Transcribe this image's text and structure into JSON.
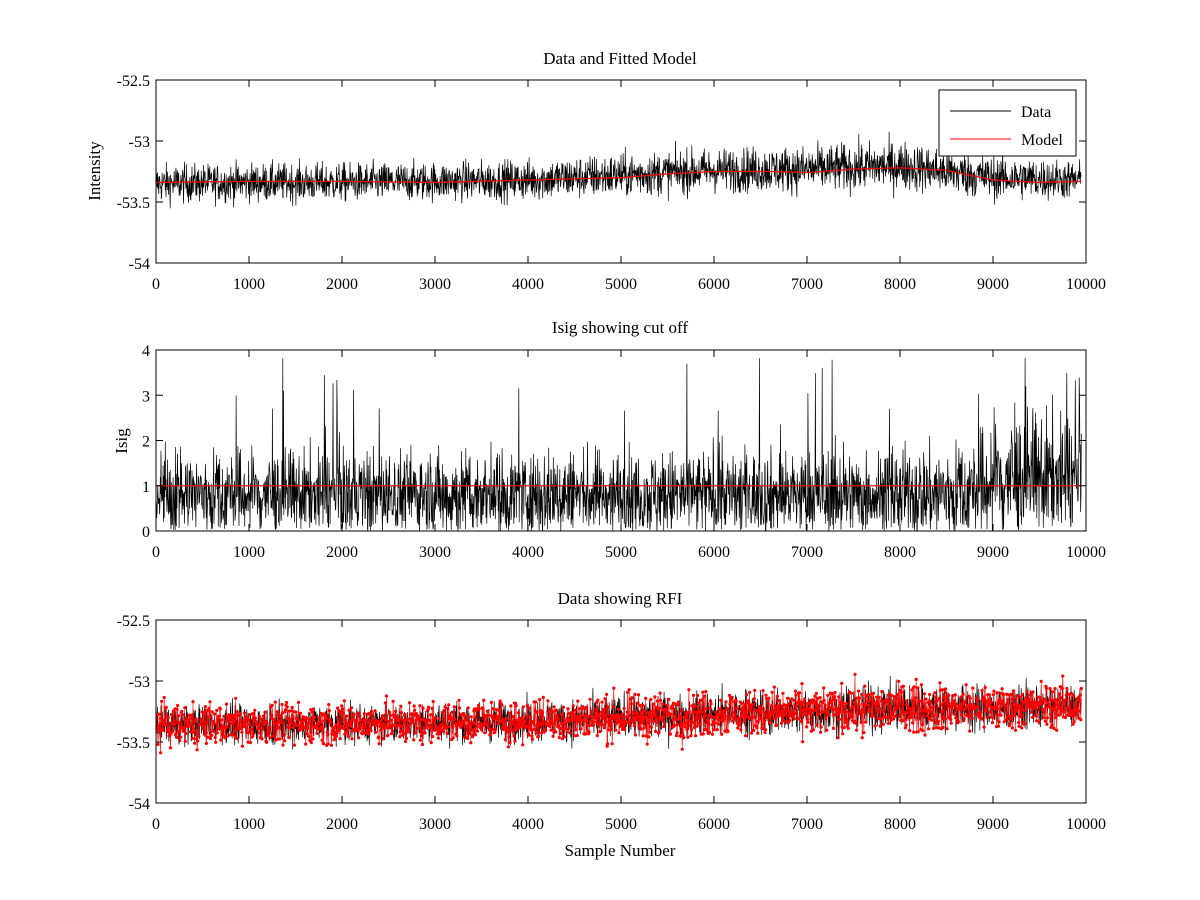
{
  "chart_data": [
    {
      "type": "line",
      "title": "Data and Fitted Model",
      "xlabel": "",
      "ylabel": "Intensity",
      "xlim": [
        0,
        10000
      ],
      "ylim": [
        -54,
        -52.5
      ],
      "xticks": [
        0,
        1000,
        2000,
        3000,
        4000,
        5000,
        6000,
        7000,
        8000,
        9000,
        10000
      ],
      "xtick_labels": [
        "0",
        "1000",
        "2000",
        "3000",
        "4000",
        "5000",
        "6000",
        "7000",
        "8000",
        "9000",
        "10000"
      ],
      "yticks": [
        -54,
        -53.5,
        -53,
        -52.5
      ],
      "ytick_labels": [
        "-54",
        "-53.5",
        "-53",
        "-52.5"
      ],
      "grid": false,
      "legend": "top-right",
      "series": [
        {
          "name": "Data",
          "color": "#000000",
          "style": "noisy-line",
          "x": [
            0,
            1000,
            2000,
            3000,
            4000,
            5000,
            6000,
            7000,
            8000,
            9000,
            9950
          ],
          "y_mean": [
            -53.35,
            -53.34,
            -53.34,
            -53.33,
            -53.32,
            -53.28,
            -53.24,
            -53.23,
            -53.2,
            -53.3,
            -53.32
          ],
          "y_spread": [
            0.14,
            0.14,
            0.14,
            0.14,
            0.15,
            0.16,
            0.16,
            0.17,
            0.18,
            0.16,
            0.14
          ]
        },
        {
          "name": "Model",
          "color": "#ff0000",
          "style": "line",
          "x": [
            0,
            1000,
            2000,
            3000,
            4000,
            5000,
            5500,
            6000,
            6400,
            6600,
            7000,
            7500,
            8000,
            8500,
            9000,
            9500,
            9950
          ],
          "y": [
            -53.34,
            -53.33,
            -53.33,
            -53.34,
            -53.32,
            -53.3,
            -53.27,
            -53.25,
            -53.25,
            -53.25,
            -53.26,
            -53.23,
            -53.22,
            -53.24,
            -53.32,
            -53.34,
            -53.33
          ]
        }
      ]
    },
    {
      "type": "line",
      "title": "Isig showing cut off",
      "xlabel": "",
      "ylabel": "Isig",
      "xlim": [
        0,
        10000
      ],
      "ylim": [
        0,
        4
      ],
      "xticks": [
        0,
        1000,
        2000,
        3000,
        4000,
        5000,
        6000,
        7000,
        8000,
        9000,
        10000
      ],
      "xtick_labels": [
        "0",
        "1000",
        "2000",
        "3000",
        "4000",
        "5000",
        "6000",
        "7000",
        "8000",
        "9000",
        "10000"
      ],
      "yticks": [
        0,
        1,
        2,
        3,
        4
      ],
      "ytick_labels": [
        "0",
        "1",
        "2",
        "3",
        "4"
      ],
      "grid": false,
      "series": [
        {
          "color": "#000000",
          "style": "noisy-line",
          "x": [
            0,
            1000,
            2000,
            3000,
            4000,
            5000,
            6000,
            7000,
            8000,
            8800,
            9000,
            9500,
            9950
          ],
          "y_mean": [
            0.8,
            0.8,
            0.8,
            0.8,
            0.8,
            0.8,
            0.8,
            0.8,
            0.8,
            0.85,
            1.1,
            1.2,
            1.1
          ],
          "y_spread": [
            0.6,
            0.6,
            0.6,
            0.6,
            0.6,
            0.6,
            0.6,
            0.6,
            0.6,
            0.7,
            0.9,
            0.9,
            0.8
          ],
          "y_peak": 3.9
        },
        {
          "color": "#ff0000",
          "style": "line",
          "x": [
            0,
            9950
          ],
          "y": [
            1,
            1
          ]
        }
      ]
    },
    {
      "type": "line",
      "title": "Data showing RFI",
      "xlabel": "Sample Number",
      "ylabel": "",
      "xlim": [
        0,
        10000
      ],
      "ylim": [
        -54,
        -52.5
      ],
      "xticks": [
        0,
        1000,
        2000,
        3000,
        4000,
        5000,
        6000,
        7000,
        8000,
        9000,
        10000
      ],
      "xtick_labels": [
        "0",
        "1000",
        "2000",
        "3000",
        "4000",
        "5000",
        "6000",
        "7000",
        "8000",
        "9000",
        "10000"
      ],
      "yticks": [
        -54,
        -53.5,
        -53,
        -52.5
      ],
      "ytick_labels": [
        "-54",
        "-53.5",
        "-53",
        "-52.5"
      ],
      "grid": false,
      "series": [
        {
          "color": "#000000",
          "style": "noisy-line",
          "x": [
            0,
            1000,
            2000,
            3000,
            4000,
            5000,
            6000,
            7000,
            8000,
            9000,
            9950
          ],
          "y_mean": [
            -53.36,
            -53.35,
            -53.35,
            -53.34,
            -53.33,
            -53.3,
            -53.27,
            -53.25,
            -53.22,
            -53.22,
            -53.2
          ],
          "y_spread": [
            0.14,
            0.14,
            0.14,
            0.14,
            0.15,
            0.15,
            0.16,
            0.16,
            0.17,
            0.16,
            0.15
          ]
        },
        {
          "color": "#ff0000",
          "style": "markers",
          "marker": "dot",
          "x": [
            0,
            1000,
            2000,
            3000,
            4000,
            5000,
            6000,
            7000,
            8000,
            9000,
            9950
          ],
          "y_mean": [
            -53.36,
            -53.35,
            -53.35,
            -53.34,
            -53.33,
            -53.3,
            -53.27,
            -53.25,
            -53.22,
            -53.22,
            -53.2
          ],
          "y_spread": [
            0.15,
            0.15,
            0.15,
            0.15,
            0.16,
            0.16,
            0.17,
            0.17,
            0.18,
            0.17,
            0.16
          ]
        }
      ]
    }
  ]
}
